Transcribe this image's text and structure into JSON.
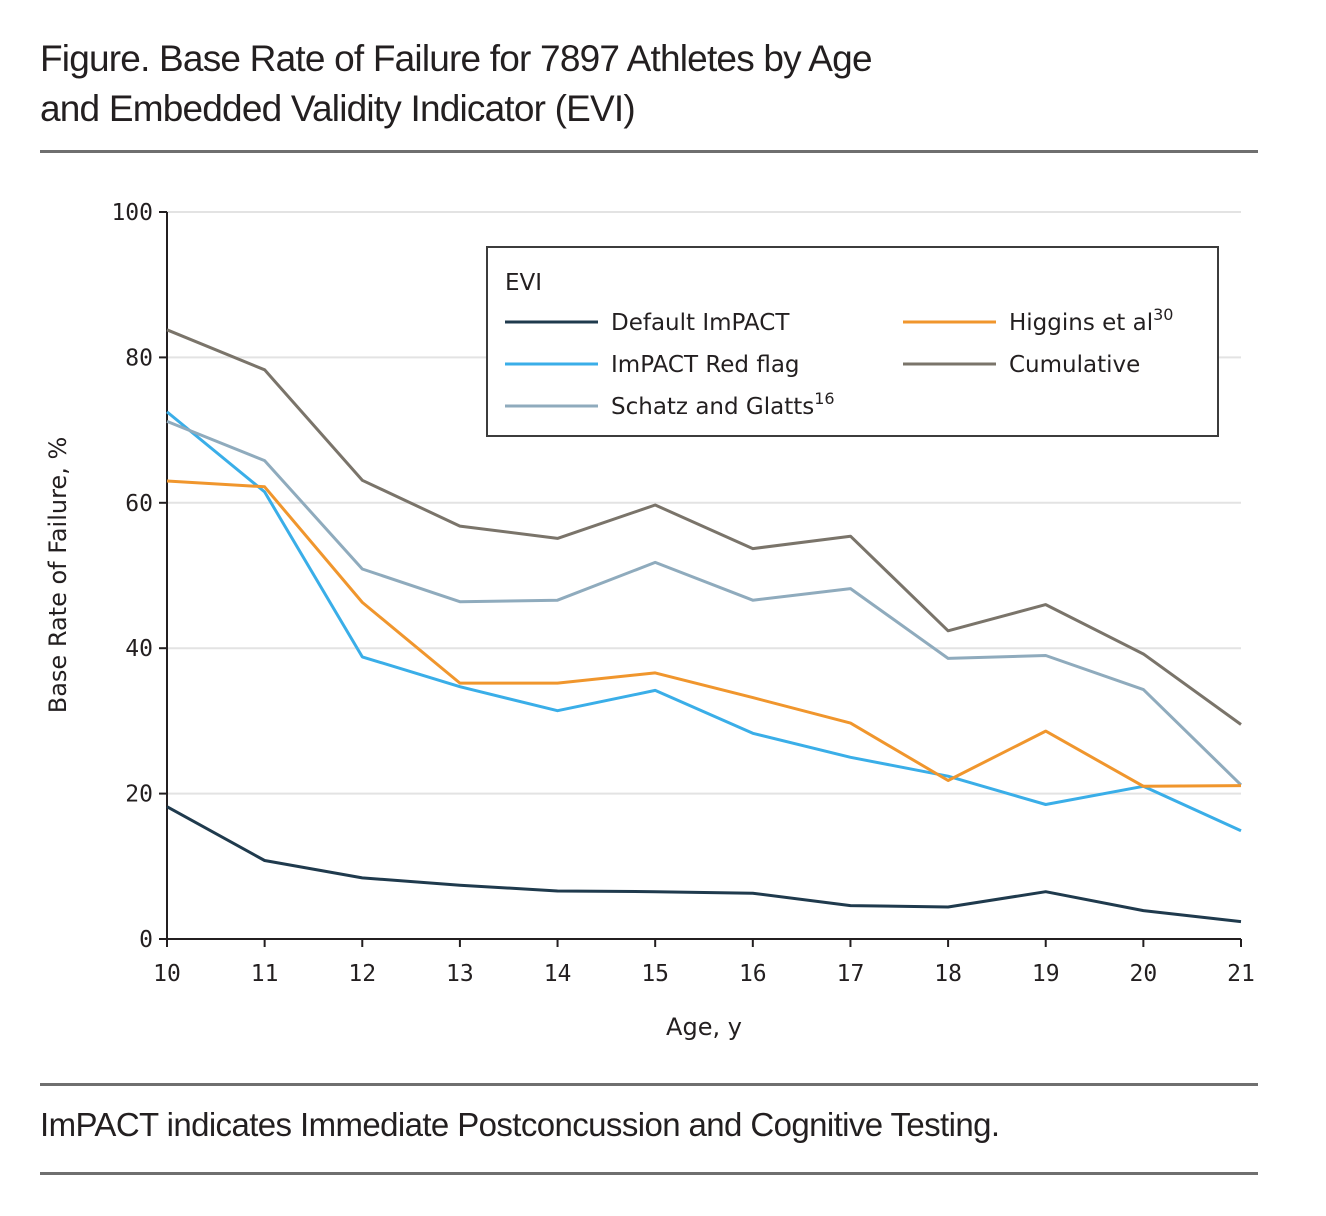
{
  "figure": {
    "title_line1": "Figure. Base Rate of Failure for 7897 Athletes by Age",
    "title_line2": "and Embedded Validity Indicator (EVI)",
    "caption": "ImPACT indicates Immediate Postconcussion and Cognitive Testing."
  },
  "chart_data": {
    "type": "line",
    "title": "Base Rate of Failure for 7897 Athletes by Age and Embedded Validity Indicator (EVI)",
    "xlabel": "Age, y",
    "ylabel": "Base Rate of Failure, %",
    "xlim": [
      10,
      21
    ],
    "ylim": [
      0,
      100
    ],
    "x_ticks": [
      10,
      11,
      12,
      13,
      14,
      15,
      16,
      17,
      18,
      19,
      20,
      21
    ],
    "y_ticks": [
      0,
      20,
      40,
      60,
      80,
      100
    ],
    "grid": "horizontal",
    "legend_title": "EVI",
    "legend_position": "top-right",
    "x": [
      10,
      11,
      12,
      13,
      14,
      15,
      16,
      17,
      18,
      19,
      20,
      21
    ],
    "series": [
      {
        "name": "Default ImPACT",
        "superscript": "",
        "color": "#1f3a4d",
        "values": [
          18.2,
          10.8,
          8.4,
          7.4,
          6.6,
          6.5,
          6.3,
          4.6,
          4.4,
          6.5,
          3.9,
          2.4
        ]
      },
      {
        "name": "ImPACT Red flag",
        "superscript": "",
        "color": "#3aaee8",
        "values": [
          72.5,
          61.5,
          38.8,
          34.7,
          31.4,
          34.2,
          28.3,
          25.0,
          22.4,
          18.5,
          21.0,
          14.9
        ]
      },
      {
        "name": "Schatz and Glatts",
        "superscript": "16",
        "color": "#8fabbd",
        "values": [
          71.2,
          65.8,
          50.9,
          46.4,
          46.6,
          51.8,
          46.6,
          48.2,
          38.6,
          39.0,
          34.3,
          21.2
        ]
      },
      {
        "name": "Higgins et al",
        "superscript": "30",
        "color": "#f0962d",
        "values": [
          63.0,
          62.2,
          46.3,
          35.2,
          35.2,
          36.6,
          33.2,
          29.7,
          21.8,
          28.6,
          21.0,
          21.1
        ]
      },
      {
        "name": "Cumulative",
        "superscript": "",
        "color": "#7a746a",
        "values": [
          83.8,
          78.3,
          63.1,
          56.8,
          55.1,
          59.7,
          53.7,
          55.4,
          42.4,
          46.0,
          39.2,
          29.5
        ]
      }
    ]
  }
}
